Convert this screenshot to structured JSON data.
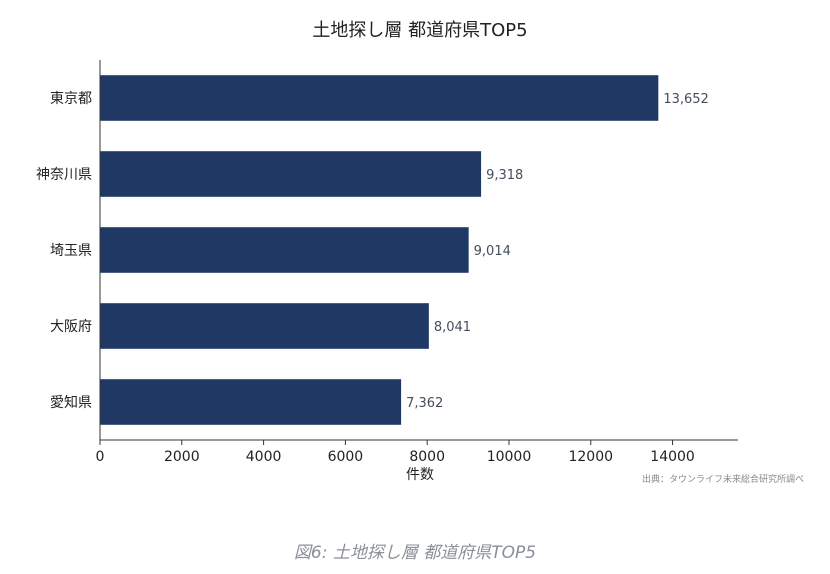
{
  "chart_data": {
    "type": "bar",
    "orientation": "horizontal",
    "title": "土地探し層 都道府県TOP5",
    "categories": [
      "東京都",
      "神奈川県",
      "埼玉県",
      "大阪府",
      "愛知県"
    ],
    "values": [
      13652,
      9318,
      9014,
      8041,
      7362
    ],
    "data_labels": [
      "13,652",
      "9,318",
      "9,014",
      "8,041",
      "7,362"
    ],
    "xlabel": "件数",
    "ylabel": "",
    "xlim": [
      0,
      15600
    ],
    "xticks": [
      0,
      2000,
      4000,
      6000,
      8000,
      10000,
      12000,
      14000
    ],
    "grid": false,
    "bar_color": "#1f3864",
    "source_note": "出典：タウンライフ未来総合研究所調べ"
  },
  "caption": "図6: 土地探し層 都道府県TOP5"
}
